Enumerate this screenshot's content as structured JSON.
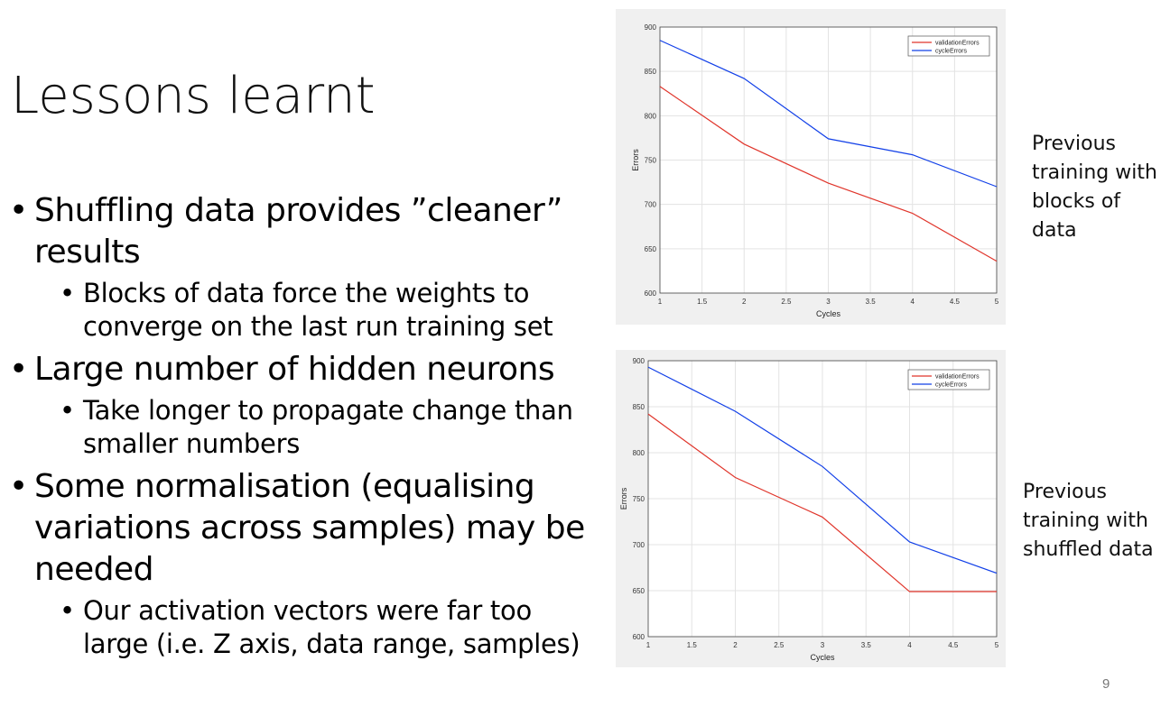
{
  "slide": {
    "title": "Lessons learnt",
    "page_number": "9",
    "bullets": [
      {
        "text": "Shuffling data provides ”cleaner” results",
        "sub": [
          "Blocks of data force the weights to converge on the last run training set"
        ]
      },
      {
        "text": "Large number of hidden neurons",
        "sub": [
          "Take longer to propagate change than smaller numbers"
        ]
      },
      {
        "text": "Some normalisation (equalising variations across samples) may be needed",
        "sub": [
          "Our activation vectors were far too large (i.e. Z axis, data range, samples)"
        ]
      }
    ],
    "captions": {
      "top": "Previous training with blocks of data",
      "bottom": "Previous training with shuffled data"
    }
  },
  "colors": {
    "validation": "#e0352b",
    "cycle": "#1240e8",
    "chart_bg": "#f0f0f0",
    "grid": "#e3e3e3"
  },
  "chart_data": [
    {
      "type": "line",
      "xlabel": "Cycles",
      "ylabel": "Errors",
      "xlim": [
        1,
        5
      ],
      "ylim": [
        600,
        900
      ],
      "xticks": [
        "1",
        "1.5",
        "2",
        "2.5",
        "3",
        "3.5",
        "4",
        "4.5",
        "5"
      ],
      "yticks": [
        "600",
        "650",
        "700",
        "750",
        "800",
        "850",
        "900"
      ],
      "grid": true,
      "legend_position": "top-right",
      "x": [
        1,
        2,
        3,
        4,
        5
      ],
      "series": [
        {
          "name": "validationErrors",
          "color": "#e0352b",
          "values": [
            833,
            768,
            724,
            690,
            636
          ]
        },
        {
          "name": "cycleErrors",
          "color": "#1240e8",
          "values": [
            885,
            842,
            774,
            756,
            720
          ]
        }
      ]
    },
    {
      "type": "line",
      "xlabel": "Cycles",
      "ylabel": "Errors",
      "xlim": [
        1,
        5
      ],
      "ylim": [
        600,
        900
      ],
      "xticks": [
        "1",
        "1.5",
        "2",
        "2.5",
        "3",
        "3.5",
        "4",
        "4.5",
        "5"
      ],
      "yticks": [
        "600",
        "650",
        "700",
        "750",
        "800",
        "850",
        "900"
      ],
      "grid": true,
      "legend_position": "top-right",
      "x": [
        1,
        2,
        3,
        4,
        5
      ],
      "series": [
        {
          "name": "validationErrors",
          "color": "#e0352b",
          "values": [
            842,
            773,
            730,
            649,
            649
          ]
        },
        {
          "name": "cycleErrors",
          "color": "#1240e8",
          "values": [
            893,
            845,
            785,
            703,
            669
          ]
        }
      ]
    }
  ]
}
